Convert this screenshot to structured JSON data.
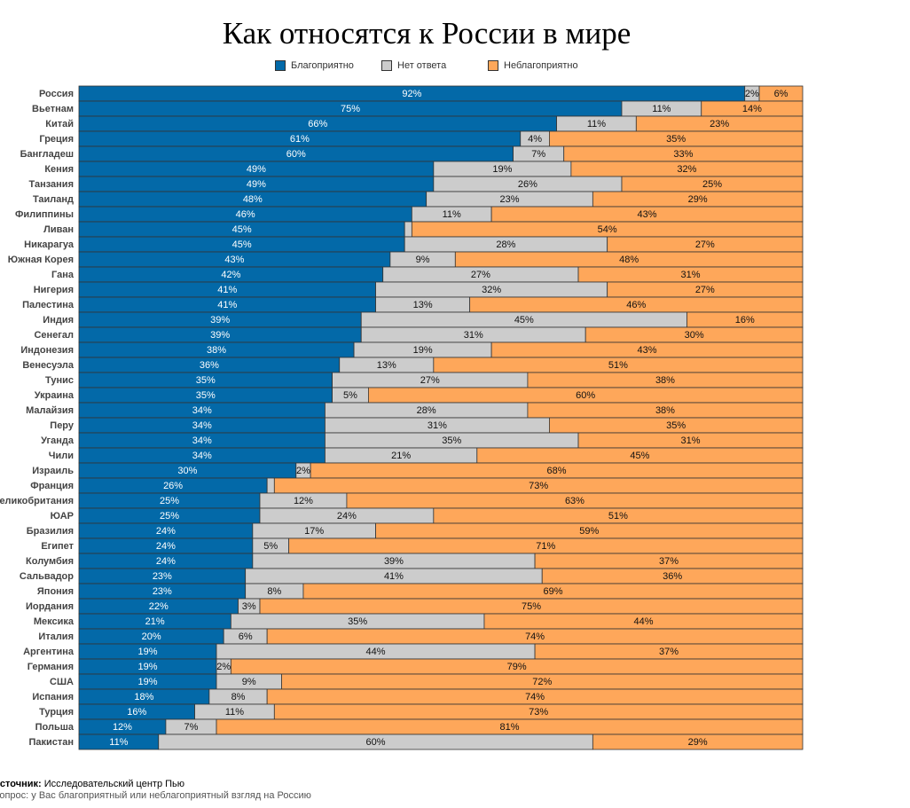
{
  "chart_data": {
    "type": "bar",
    "orientation": "horizontal",
    "stacked": true,
    "title": "Как относятся к России в мире",
    "legend_position": "top",
    "series": [
      {
        "name": "Благоприятно",
        "color": "#0369a8"
      },
      {
        "name": "Нет ответа",
        "color": "#cccccc"
      },
      {
        "name": "Неблагоприятно",
        "color": "#fea75a"
      }
    ],
    "value_suffix": "%",
    "rows": [
      [
        "Россия",
        92,
        2,
        6
      ],
      [
        "Вьетнам",
        75,
        11,
        14
      ],
      [
        "Китай",
        66,
        11,
        23
      ],
      [
        "Греция",
        61,
        4,
        35
      ],
      [
        "Бангладеш",
        60,
        7,
        33
      ],
      [
        "Кения",
        49,
        19,
        32
      ],
      [
        "Танзания",
        49,
        26,
        25
      ],
      [
        "Таиланд",
        48,
        23,
        29
      ],
      [
        "Филиппины",
        46,
        11,
        43
      ],
      [
        "Ливан",
        45,
        1,
        54
      ],
      [
        "Никарагуа",
        45,
        28,
        27
      ],
      [
        "Южная Корея",
        43,
        9,
        48
      ],
      [
        "Гана",
        42,
        27,
        31
      ],
      [
        "Нигерия",
        41,
        32,
        27
      ],
      [
        "Палестина",
        41,
        13,
        46
      ],
      [
        "Индия",
        39,
        45,
        16
      ],
      [
        "Сенегал",
        39,
        31,
        30
      ],
      [
        "Индонезия",
        38,
        19,
        43
      ],
      [
        "Венесуэла",
        36,
        13,
        51
      ],
      [
        "Тунис",
        35,
        27,
        38
      ],
      [
        "Украина",
        35,
        5,
        60
      ],
      [
        "Малайзия",
        34,
        28,
        38
      ],
      [
        "Перу",
        34,
        31,
        35
      ],
      [
        "Уганда",
        34,
        35,
        31
      ],
      [
        "Чили",
        34,
        21,
        45
      ],
      [
        "Израиль",
        30,
        2,
        68
      ],
      [
        "Франция",
        26,
        1,
        73
      ],
      [
        "Великобритания",
        25,
        12,
        63
      ],
      [
        "ЮАР",
        25,
        24,
        51
      ],
      [
        "Бразилия",
        24,
        17,
        59
      ],
      [
        "Египет",
        24,
        5,
        71
      ],
      [
        "Колумбия",
        24,
        39,
        37
      ],
      [
        "Сальвадор",
        23,
        41,
        36
      ],
      [
        "Япония",
        23,
        8,
        69
      ],
      [
        "Иордания",
        22,
        3,
        75
      ],
      [
        "Мексика",
        21,
        35,
        44
      ],
      [
        "Италия",
        20,
        6,
        74
      ],
      [
        "Аргентина",
        19,
        44,
        37
      ],
      [
        "Германия",
        19,
        2,
        79
      ],
      [
        "США",
        19,
        9,
        72
      ],
      [
        "Испания",
        18,
        8,
        74
      ],
      [
        "Турция",
        16,
        11,
        73
      ],
      [
        "Польша",
        12,
        7,
        81
      ],
      [
        "Пакистан",
        11,
        60,
        29
      ]
    ]
  },
  "footer": {
    "source_label": "Источник:",
    "source_value": "Исследовательский центр Пью",
    "question": "Вопрос: у Вас благоприятный или неблагоприятный взгляд на Россию"
  }
}
